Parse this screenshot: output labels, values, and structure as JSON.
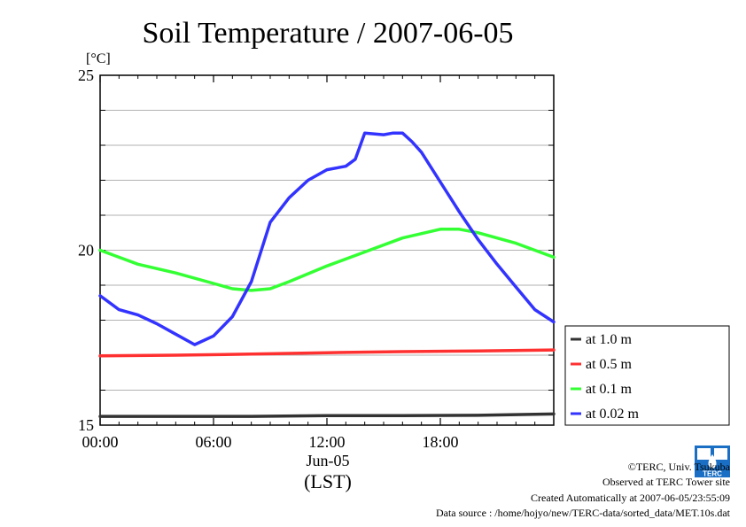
{
  "chart_data": {
    "type": "line",
    "title": "Soil Temperature / 2007-06-05",
    "ylabel": "[°C]",
    "xlabel": "(LST)",
    "date_label": "Jun-05",
    "xlim_hours": [
      0,
      24
    ],
    "ylim": [
      15,
      25
    ],
    "x_ticks": [
      {
        "hour": 0,
        "label": "00:00"
      },
      {
        "hour": 6,
        "label": "06:00"
      },
      {
        "hour": 12,
        "label": "12:00"
      },
      {
        "hour": 18,
        "label": "18:00"
      }
    ],
    "y_ticks": [
      {
        "value": 15,
        "label": "15"
      },
      {
        "value": 20,
        "label": "20"
      },
      {
        "value": 25,
        "label": "25"
      }
    ],
    "grid": true,
    "legend_position": "right, bottom",
    "series": [
      {
        "name": "at 1.0 m",
        "color": "#333333",
        "x": [
          0,
          4,
          8,
          12,
          16,
          20,
          24
        ],
        "y": [
          15.25,
          15.25,
          15.25,
          15.27,
          15.27,
          15.28,
          15.32
        ]
      },
      {
        "name": "at 0.5 m",
        "color": "#ff3030",
        "x": [
          0,
          4,
          8,
          12,
          16,
          20,
          24
        ],
        "y": [
          16.98,
          17.0,
          17.03,
          17.07,
          17.1,
          17.12,
          17.15
        ]
      },
      {
        "name": "at 0.1 m",
        "color": "#33ff33",
        "x": [
          0,
          2,
          4,
          6,
          7,
          8,
          9,
          10,
          12,
          14,
          16,
          18,
          19,
          20,
          22,
          24
        ],
        "y": [
          20.0,
          19.6,
          19.35,
          19.05,
          18.9,
          18.85,
          18.9,
          19.1,
          19.55,
          19.95,
          20.35,
          20.6,
          20.6,
          20.5,
          20.2,
          19.8
        ]
      },
      {
        "name": "at 0.02 m",
        "color": "#3333ff",
        "x": [
          0,
          1,
          2,
          3,
          4,
          5,
          6,
          7,
          8,
          9,
          10,
          11,
          12,
          13,
          13.5,
          14,
          15,
          15.5,
          16,
          16.5,
          17,
          18,
          19,
          20,
          21,
          22,
          23,
          24
        ],
        "y": [
          18.7,
          18.3,
          18.15,
          17.9,
          17.6,
          17.3,
          17.55,
          18.1,
          19.1,
          20.8,
          21.5,
          22.0,
          22.3,
          22.4,
          22.6,
          23.35,
          23.3,
          23.35,
          23.35,
          23.1,
          22.8,
          21.95,
          21.1,
          20.3,
          19.6,
          18.95,
          18.3,
          17.95
        ]
      }
    ]
  },
  "footer": {
    "copyright": "©TERC, Univ. Tsukuba",
    "observed": "Observed at TERC Tower site",
    "created": "Created Automatically at 2007-06-05/23:55:09",
    "source": "Data source : /home/hojyo/new/TERC-data/sorted_data/MET.10s.dat"
  },
  "logo": {
    "text": "TERC",
    "color": "#1a6fc4"
  }
}
